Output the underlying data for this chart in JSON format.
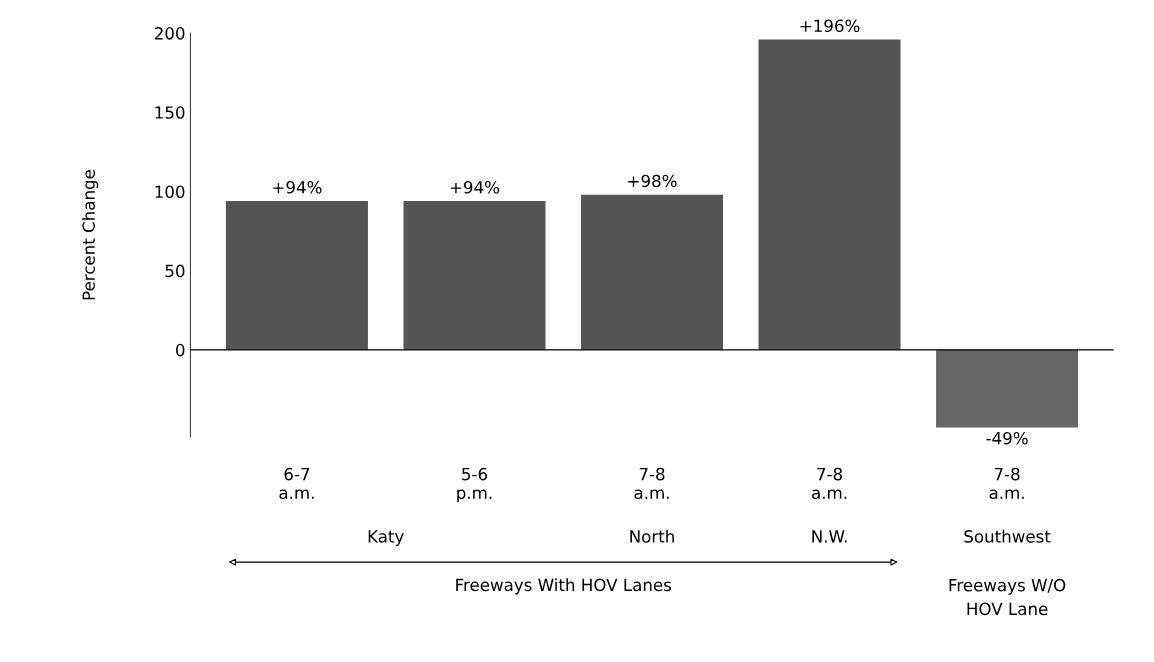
{
  "chart_data": {
    "type": "bar",
    "ylabel": "Percent Change",
    "categories": [
      "6-7\na.m.",
      "5-6\np.m.",
      "7-8\na.m.",
      "7-8\na.m.",
      "7-8\na.m."
    ],
    "values": [
      94,
      94,
      98,
      196,
      -49
    ],
    "value_labels": [
      "+94%",
      "+94%",
      "+98%",
      "+196%",
      "-49%"
    ],
    "colors": [
      "#555555",
      "#555555",
      "#555555",
      "#555555",
      "#666666"
    ],
    "ylim": [
      -55,
      200
    ],
    "yticks": [
      0,
      50,
      100,
      150,
      200
    ],
    "annotations": [
      "Katy",
      "North",
      "N.W.",
      "Southwest",
      "Freeways With HOV Lanes",
      "Freeways W/O\nHOV Lane"
    ]
  }
}
